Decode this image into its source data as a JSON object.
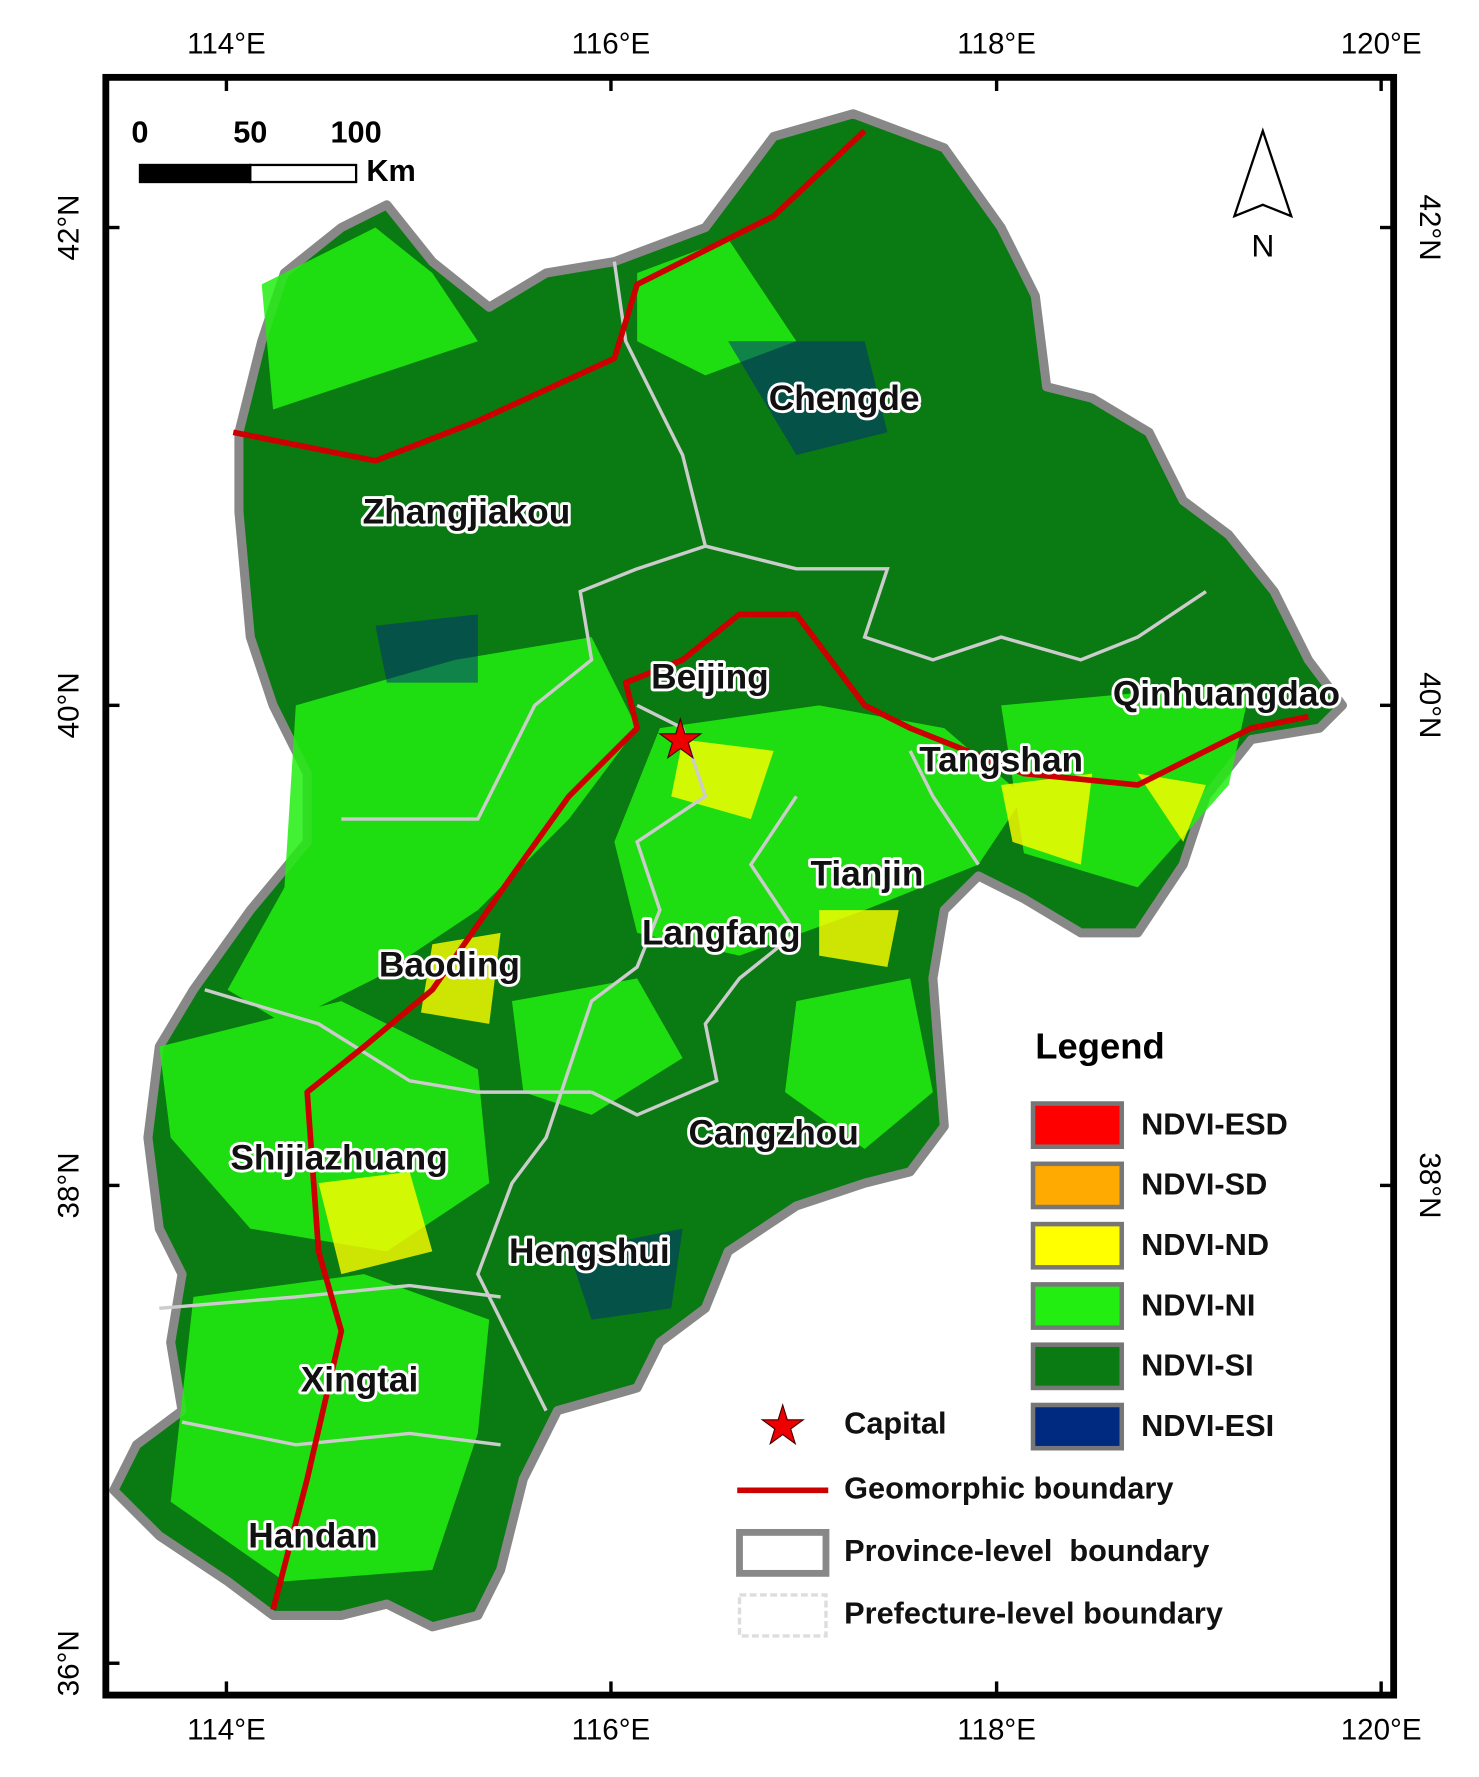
{
  "axes": {
    "top": [
      "114°E",
      "116°E",
      "118°E",
      "120°E"
    ],
    "bottom": [
      "114°E",
      "116°E",
      "118°E",
      "120°E"
    ],
    "left": [
      "42°N",
      "40°N",
      "38°N",
      "36°N"
    ],
    "right": [
      "42°N",
      "40°N",
      "38°N"
    ]
  },
  "scale_bar": {
    "labels": [
      "0",
      "50",
      "100"
    ],
    "unit": "Km"
  },
  "north_arrow": "N",
  "regions": [
    "Chengde",
    "Zhangjiakou",
    "Beijing",
    "Qinhuangdao",
    "Tangshan",
    "Tianjin",
    "Langfang",
    "Baoding",
    "Cangzhou",
    "Shijiazhuang",
    "Hengshui",
    "Xingtai",
    "Handan"
  ],
  "legend": {
    "title": "Legend",
    "classes": [
      {
        "label": "NDVI-ESD",
        "color": "#ff0000"
      },
      {
        "label": "NDVI-SD",
        "color": "#ffaa00"
      },
      {
        "label": "NDVI-ND",
        "color": "#ffff00"
      },
      {
        "label": "NDVI-NI",
        "color": "#22ee11"
      },
      {
        "label": "NDVI-SI",
        "color": "#0a7a12"
      },
      {
        "label": "NDVI-ESI",
        "color": "#002a80"
      }
    ],
    "symbols": [
      "Capital",
      "Geomorphic boundary",
      "Province-level  boundary",
      "Prefecture-level boundary"
    ]
  }
}
